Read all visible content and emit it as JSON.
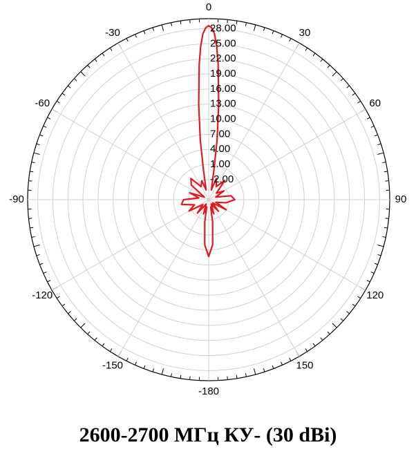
{
  "chart_data": {
    "type": "polar",
    "title": "2600-2700 МГц КУ- (30 dBi)",
    "direction": "clockwise",
    "zero": "top",
    "rlim": [
      -6,
      30
    ],
    "rticks": [
      {
        "value": -2,
        "label": "-2.00"
      },
      {
        "value": 1,
        "label": "1.00"
      },
      {
        "value": 4,
        "label": "4.00"
      },
      {
        "value": 7,
        "label": "7.00"
      },
      {
        "value": 10,
        "label": "10.00"
      },
      {
        "value": 13,
        "label": "13.00"
      },
      {
        "value": 16,
        "label": "16.00"
      },
      {
        "value": 19,
        "label": "19.00"
      },
      {
        "value": 22,
        "label": "22.00"
      },
      {
        "value": 25,
        "label": "25.00"
      },
      {
        "value": 28,
        "label": "28.00"
      }
    ],
    "thetaticks": [
      0,
      30,
      60,
      90,
      120,
      150,
      -180,
      -150,
      -120,
      -90,
      -60,
      -30
    ],
    "grid": true,
    "series": [
      {
        "color": "#e0191e",
        "angles": [
          -180,
          -175,
          -170,
          -165,
          -160,
          -150,
          -140,
          -130,
          -120,
          -110,
          -100,
          -90,
          -80,
          -70,
          -60,
          -50,
          -40,
          -30,
          -20,
          -15,
          -10,
          -8,
          -6,
          -4,
          -3,
          -2,
          -1,
          0,
          1,
          2,
          3,
          4,
          6,
          8,
          10,
          15,
          20,
          30,
          40,
          50,
          60,
          70,
          80,
          90,
          100,
          110,
          120,
          130,
          140,
          150,
          160,
          165,
          170,
          175
        ],
        "values": [
          5.3,
          3,
          -1.5,
          -4.5,
          -3,
          -5,
          -2.5,
          -4.5,
          -1.5,
          -3,
          -0.5,
          -1,
          -4,
          -2,
          -5,
          -1.5,
          -0.5,
          -3,
          -2,
          -4,
          0,
          6,
          13,
          21,
          24.5,
          27,
          28.2,
          28.6,
          28.2,
          27,
          24.5,
          21,
          13,
          6,
          0,
          -4,
          -1.5,
          -3,
          -1,
          -4,
          -2.5,
          -4.5,
          -1.5,
          -0.8,
          -2.5,
          -4.5,
          -2,
          -5,
          -3,
          -5,
          -3,
          -4.5,
          -1.5,
          3
        ]
      }
    ]
  }
}
